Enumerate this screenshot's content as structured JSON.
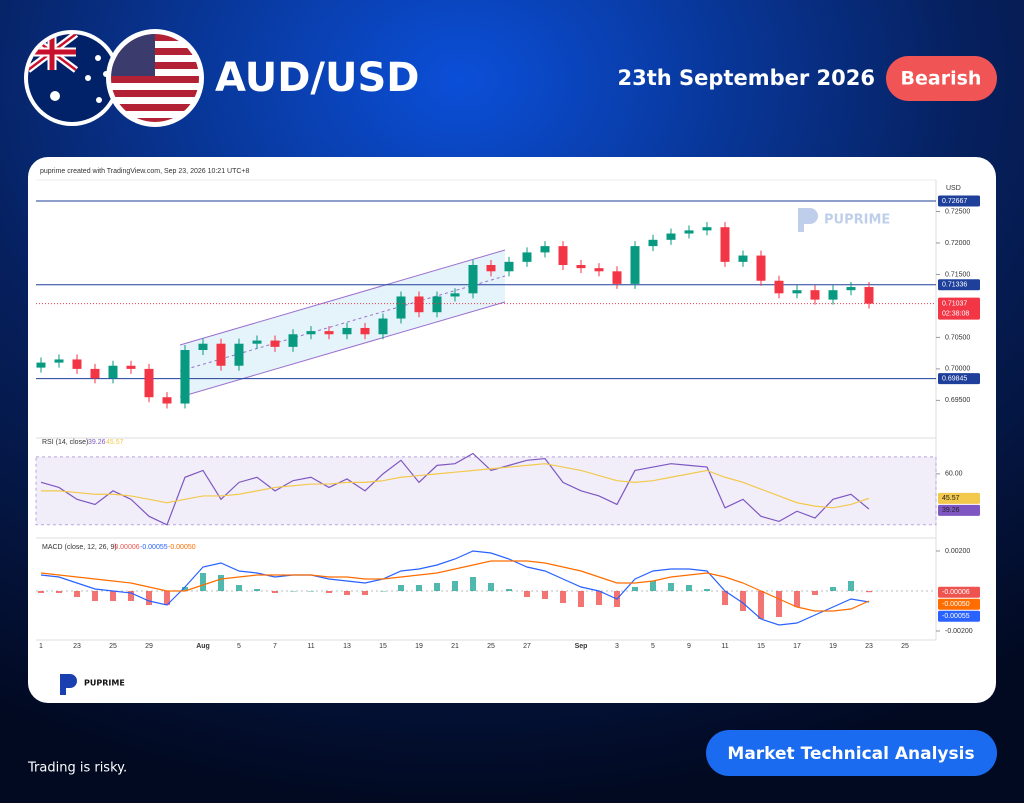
{
  "header": {
    "pair": "AUD/USD",
    "date": "23th September 2026",
    "sentiment": "Bearish"
  },
  "brand": "PUPRIME",
  "footer": {
    "disclaimer": "Trading is risky.",
    "button": "Market Technical Analysis"
  },
  "chart_data": [
    {
      "type": "candlestick",
      "attribution": "puprime created with TradingView.com, Sep 23, 2026 10:21 UTC+8",
      "currency": "USD",
      "open": [
        0.7002,
        0.701,
        0.7015,
        0.7,
        0.6985,
        0.7005,
        0.7,
        0.6955,
        0.6945,
        0.703,
        0.704,
        0.7005,
        0.704,
        0.7045,
        0.7035,
        0.7055,
        0.706,
        0.7055,
        0.7065,
        0.7055,
        0.708,
        0.7115,
        0.709,
        0.7115,
        0.712,
        0.7165,
        0.7155,
        0.717,
        0.7185,
        0.7195,
        0.7165,
        0.716,
        0.7155,
        0.7135,
        0.7195,
        0.7205,
        0.7215,
        0.722,
        0.7225,
        0.717,
        0.718,
        0.714,
        0.712,
        0.7125,
        0.711,
        0.7125,
        0.713,
        null,
        null
      ],
      "high": [
        0.7018,
        0.7023,
        0.7023,
        0.7008,
        0.7013,
        0.7013,
        0.7008,
        0.6963,
        0.7038,
        0.7048,
        0.7048,
        0.7048,
        0.7053,
        0.7053,
        0.7063,
        0.7068,
        0.7068,
        0.7073,
        0.7073,
        0.7088,
        0.7123,
        0.7123,
        0.7123,
        0.7128,
        0.7173,
        0.7173,
        0.7178,
        0.7193,
        0.7203,
        0.7203,
        0.7173,
        0.7168,
        0.7163,
        0.7203,
        0.7213,
        0.7223,
        0.7228,
        0.7233,
        0.7233,
        0.7188,
        0.7188,
        0.7148,
        0.7133,
        0.7133,
        0.7133,
        0.7138,
        0.7138,
        null,
        null
      ],
      "low": [
        0.6994,
        0.7002,
        0.6992,
        0.6977,
        0.6977,
        0.6992,
        0.6947,
        0.6937,
        0.6937,
        0.7022,
        0.6997,
        0.6997,
        0.7032,
        0.7027,
        0.7027,
        0.7047,
        0.7047,
        0.7047,
        0.7047,
        0.7047,
        0.7072,
        0.7082,
        0.7082,
        0.7107,
        0.7112,
        0.7147,
        0.7147,
        0.7162,
        0.7177,
        0.7157,
        0.7152,
        0.7147,
        0.7127,
        0.7127,
        0.7187,
        0.7197,
        0.7207,
        0.7212,
        0.7162,
        0.7162,
        0.7132,
        0.7112,
        0.7112,
        0.7102,
        0.7102,
        0.7117,
        0.7096,
        null,
        null
      ],
      "close": [
        0.701,
        0.7015,
        0.7,
        0.6985,
        0.7005,
        0.7,
        0.6955,
        0.6945,
        0.703,
        0.704,
        0.7005,
        0.704,
        0.7045,
        0.7035,
        0.7055,
        0.706,
        0.7055,
        0.7065,
        0.7055,
        0.708,
        0.7115,
        0.709,
        0.7115,
        0.712,
        0.7165,
        0.7155,
        0.717,
        0.7185,
        0.7195,
        0.7165,
        0.716,
        0.7155,
        0.7135,
        0.7195,
        0.7205,
        0.7215,
        0.722,
        0.7225,
        0.717,
        0.718,
        0.714,
        0.712,
        0.7125,
        0.711,
        0.7125,
        0.713,
        0.71037,
        null,
        null
      ],
      "up_color": "#089981",
      "down_color": "#f23645",
      "ylim": [
        0.6895,
        0.73
      ],
      "yticks": [
        {
          "value": 0.695,
          "label": "0.69500"
        },
        {
          "value": 0.7,
          "label": "0.70000"
        },
        {
          "value": 0.705,
          "label": "0.70500"
        },
        {
          "value": 0.715,
          "label": "0.71500"
        },
        {
          "value": 0.72,
          "label": "0.72000"
        },
        {
          "value": 0.725,
          "label": "0.72500"
        }
      ],
      "levels": [
        0.72667,
        0.71336,
        0.69845
      ],
      "level_color": "#1e3f9a",
      "last_price": 0.71037,
      "countdown": "02:38:08"
    },
    {
      "type": "line",
      "title": "RSI (14, close)",
      "ylim": [
        24,
        77
      ],
      "yticks": [
        {
          "value": 60,
          "label": "60.00"
        }
      ],
      "band": [
        30,
        70
      ],
      "series": [
        {
          "color": "#7e57c2",
          "values": [
            55,
            52,
            45,
            42,
            50,
            45,
            35,
            30,
            58,
            62,
            45,
            55,
            58,
            50,
            56,
            58,
            52,
            57,
            50,
            60,
            68,
            55,
            65,
            66,
            72,
            62,
            65,
            68,
            69,
            55,
            50,
            47,
            42,
            62,
            64,
            66,
            65,
            64,
            40,
            45,
            35,
            32,
            38,
            34,
            45,
            48,
            39.26,
            null,
            null
          ]
        },
        {
          "color": "#f2c94c",
          "values": [
            50,
            50,
            49,
            48,
            48,
            47,
            45,
            43,
            45,
            47,
            47,
            48,
            50,
            52,
            53,
            54,
            54,
            55,
            55,
            56,
            58,
            59,
            60,
            61,
            62,
            63,
            64,
            65,
            66,
            64,
            62,
            59,
            56,
            55,
            56,
            58,
            60,
            62,
            58,
            55,
            51,
            47,
            43,
            41,
            40,
            42,
            45.57,
            null,
            null
          ]
        }
      ]
    },
    {
      "type": "macd",
      "title": "MACD (close, 12, 26, 9)",
      "ylim": [
        -0.00245,
        0.00255
      ],
      "yticks": [
        {
          "value": -0.002,
          "label": "-0.00200"
        },
        {
          "value": 0.002,
          "label": "0.00200"
        }
      ],
      "categories": [
        "1",
        null,
        "23",
        null,
        "25",
        null,
        "29",
        null,
        null,
        "Aug",
        null,
        "5",
        null,
        "7",
        null,
        "11",
        null,
        "13",
        null,
        "15",
        null,
        "19",
        null,
        "21",
        null,
        "25",
        null,
        "27",
        null,
        null,
        "Sep",
        null,
        "3",
        null,
        "5",
        null,
        "9",
        null,
        "11",
        null,
        "15",
        null,
        "17",
        null,
        "19",
        null,
        "23",
        null,
        "25"
      ],
      "histogram": {
        "up_color": "#26a69a",
        "down_color": "#ef5350",
        "values": [
          -0.0001,
          -0.0001,
          -0.0003,
          -0.0005,
          -0.0005,
          -0.0005,
          -0.0007,
          -0.0007,
          0.0002,
          0.0009,
          0.0008,
          0.0003,
          0.0001,
          -0.0001,
          0,
          0,
          -0.0001,
          -0.0002,
          -0.0002,
          0,
          0.0003,
          0.0003,
          0.0004,
          0.0005,
          0.0007,
          0.0004,
          0.0001,
          -0.0003,
          -0.0004,
          -0.0006,
          -0.0008,
          -0.0007,
          -0.0008,
          0.0002,
          0.0005,
          0.0004,
          0.0003,
          0.0001,
          -0.0007,
          -0.001,
          -0.0014,
          -0.0013,
          -0.0008,
          -0.0002,
          0.0002,
          0.0005,
          -6e-05,
          null,
          null
        ]
      },
      "series": [
        {
          "color": "#2962ff",
          "values": [
            0.0008,
            0.0007,
            0.0004,
            0.0001,
            0,
            -0.0001,
            -0.0005,
            -0.0007,
            0.0002,
            0.0012,
            0.0014,
            0.001,
            0.0009,
            0.0007,
            0.0008,
            0.0008,
            0.0006,
            0.0005,
            0.0004,
            0.0006,
            0.001,
            0.0011,
            0.0013,
            0.0016,
            0.002,
            0.0019,
            0.0016,
            0.0012,
            0.001,
            0.0006,
            0.0002,
            0,
            -0.0004,
            0.0006,
            0.001,
            0.0011,
            0.0011,
            0.001,
            0,
            -0.0006,
            -0.0014,
            -0.0017,
            -0.0016,
            -0.0012,
            -0.0008,
            -0.0004,
            -0.00055,
            null,
            null
          ]
        },
        {
          "color": "#ff6d00",
          "values": [
            0.0009,
            0.0008,
            0.0007,
            0.0006,
            0.0005,
            0.0004,
            0.0002,
            0,
            0,
            0.0003,
            0.0006,
            0.0007,
            0.0008,
            0.0008,
            0.0008,
            0.0008,
            0.0007,
            0.0007,
            0.0006,
            0.0006,
            0.0007,
            0.0008,
            0.0009,
            0.0011,
            0.0013,
            0.0015,
            0.0015,
            0.0015,
            0.0014,
            0.0012,
            0.001,
            0.0007,
            0.0004,
            0.0004,
            0.0005,
            0.0007,
            0.0008,
            0.0009,
            0.0007,
            0.0004,
            0,
            -0.0004,
            -0.0008,
            -0.001,
            -0.001,
            -0.0009,
            -0.0005,
            null,
            null
          ],
          "value_labels": [
            null,
            null,
            null,
            null,
            null,
            null,
            null,
            null,
            null,
            null,
            null,
            null,
            null,
            null,
            null,
            null,
            null,
            null,
            null,
            null,
            null,
            null,
            null,
            null,
            null,
            null,
            null,
            null,
            null,
            null,
            null,
            null,
            null,
            null,
            null,
            null,
            null,
            null,
            null,
            null,
            null,
            null,
            null,
            null,
            null,
            null,
            "-0.00050",
            null,
            null
          ]
        }
      ]
    }
  ]
}
